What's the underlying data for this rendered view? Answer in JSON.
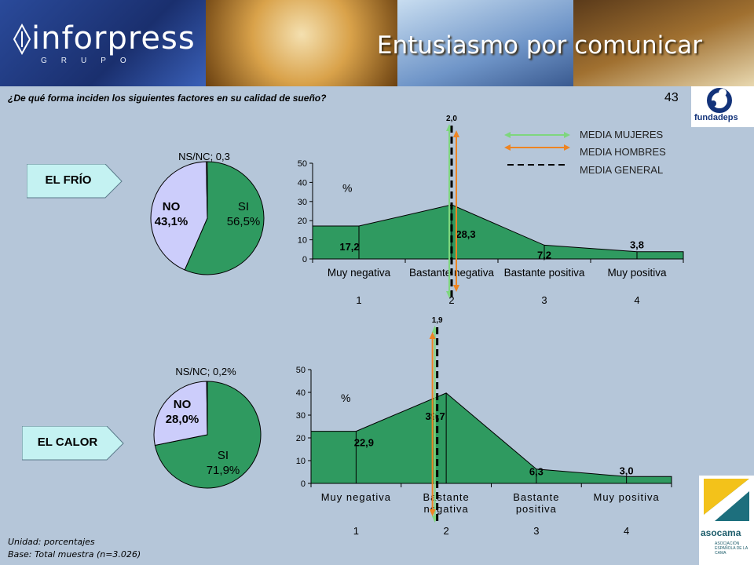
{
  "header": {
    "logo_text": "inforpress",
    "logo_sub": "GRUPO",
    "title": "Entusiasmo por comunicar"
  },
  "question": "¿De qué forma inciden los siguientes factores en su calidad de sueño?",
  "page_number": "43",
  "logos": {
    "top_right": "fundadeps",
    "bottom_right": "asocama",
    "bottom_right_sub": "ASOCIACIÓN ESPAÑOLA DE LA CAMA"
  },
  "legend": {
    "women": "MEDIA MUJERES",
    "men": "MEDIA HOMBRES",
    "general": "MEDIA GENERAL"
  },
  "colors": {
    "green_fill": "#2f9a60",
    "lavender": "#cccdfb",
    "women_line": "#7ed67e",
    "men_line": "#ee8422",
    "general_line": "#000000",
    "tag_fill": "#c4f2f2"
  },
  "footnotes": {
    "unit": "Unidad: porcentajes",
    "base": "Base: Total muestra (n=3.026)"
  },
  "chart_data": [
    {
      "type": "pie",
      "section": "EL FRÍO",
      "slices": [
        {
          "label": "SI",
          "value": 56.5,
          "display": "56,5%"
        },
        {
          "label": "NO",
          "value": 43.1,
          "display": "43,1%"
        },
        {
          "label": "NS/NC",
          "value": 0.3,
          "display": "NS/NC; 0,3"
        }
      ]
    },
    {
      "type": "area",
      "section": "EL FRÍO",
      "categories": [
        "Muy negativa",
        "Bastante negativa",
        "Bastante positiva",
        "Muy positiva"
      ],
      "values": [
        17.2,
        28.3,
        7.2,
        3.8
      ],
      "data_labels": [
        "17,2",
        "28,3",
        "7,2",
        "3,8"
      ],
      "yticks": [
        0,
        10,
        20,
        30,
        40,
        50
      ],
      "ylim": [
        0,
        50
      ],
      "ylabel": "%",
      "scale_numbers": [
        "1",
        "2",
        "3",
        "4"
      ],
      "mean_general": 2.0,
      "mean_label": "2,0"
    },
    {
      "type": "pie",
      "section": "EL CALOR",
      "slices": [
        {
          "label": "SI",
          "value": 71.9,
          "display": "71,9%"
        },
        {
          "label": "NO",
          "value": 28.0,
          "display": "28,0%"
        },
        {
          "label": "NS/NC",
          "value": 0.2,
          "display": "NS/NC; 0,2%"
        }
      ]
    },
    {
      "type": "area",
      "section": "EL CALOR",
      "categories": [
        "Muy negativa",
        "Bastante\nnegativa",
        "Bastante\npositiva",
        "Muy positiva"
      ],
      "values": [
        22.9,
        39.7,
        6.3,
        3.0
      ],
      "data_labels": [
        "22,9",
        "39,7",
        "6,3",
        "3,0"
      ],
      "yticks": [
        0,
        10,
        20,
        30,
        40,
        50
      ],
      "ylim": [
        0,
        50
      ],
      "ylabel": "%",
      "scale_numbers": [
        "1",
        "2",
        "3",
        "4"
      ],
      "mean_general": 1.9,
      "mean_label": "1,9"
    }
  ]
}
